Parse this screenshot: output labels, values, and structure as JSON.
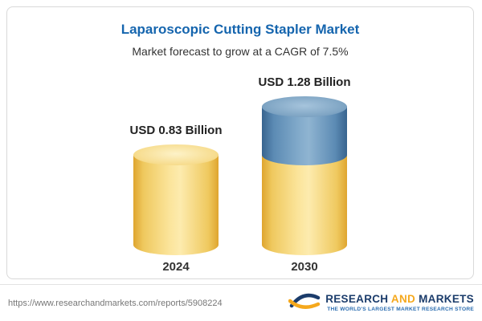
{
  "header": {
    "title": "Laparoscopic Cutting Stapler Market",
    "subtitle": "Market forecast to grow at a CAGR of 7.5%"
  },
  "chart_data": {
    "type": "bar",
    "variant": "3d-cylinder-stacked",
    "title": "Laparoscopic Cutting Stapler Market",
    "subtitle": "Market forecast to grow at a CAGR of 7.5%",
    "categories": [
      "2024",
      "2030"
    ],
    "values": [
      0.83,
      1.28
    ],
    "value_labels": [
      "USD 0.83 Billion",
      "USD 1.28 Billion"
    ],
    "unit": "USD Billion",
    "cagr_pct": 7.5,
    "ylim": [
      0,
      1.28
    ],
    "xlabel": "",
    "ylabel": "",
    "legend": "none",
    "grid": false,
    "layout_hint": "2030 cylinder stacked: gold base equals 2024 value, blue top segment is the growth difference",
    "colors": {
      "gold_segment": "#F6D886",
      "blue_segment": "#5D8AB3"
    }
  },
  "footer": {
    "url": "https://www.researchandmarkets.com/reports/5908224",
    "logo": {
      "word1": "RESEARCH",
      "word2": "AND",
      "word3": "MARKETS",
      "tagline": "THE WORLD'S LARGEST MARKET RESEARCH STORE"
    }
  },
  "brand_colors": {
    "title_blue": "#1565AE",
    "logo_navy": "#1B3C6B",
    "logo_orange": "#F5A81C"
  }
}
